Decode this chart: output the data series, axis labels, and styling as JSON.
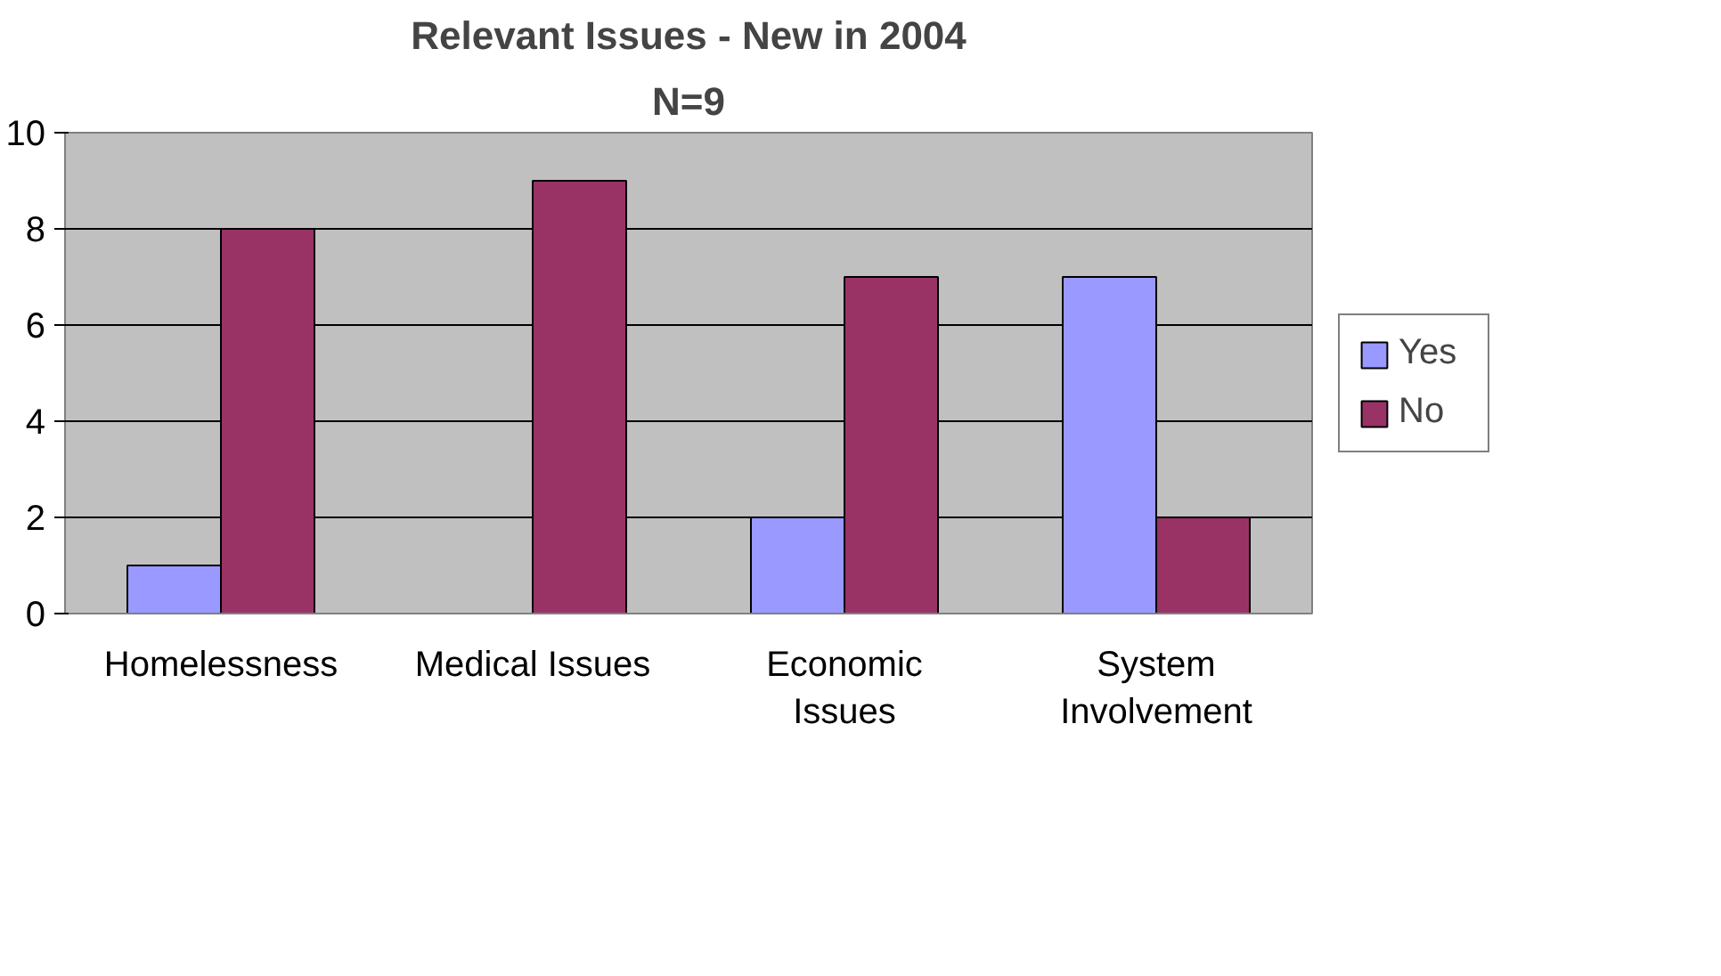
{
  "chart_data": {
    "type": "bar",
    "title": "Relevant Issues - New in 2004",
    "subtitle": "N=9",
    "categories": [
      "Homelessness",
      "Medical Issues",
      "Economic Issues",
      "System Involvement"
    ],
    "series": [
      {
        "name": "Yes",
        "color": "#9999ff",
        "values": [
          1,
          0,
          2,
          7
        ]
      },
      {
        "name": "No",
        "color": "#993366",
        "values": [
          8,
          9,
          7,
          2
        ]
      }
    ],
    "ylim": [
      0,
      10
    ],
    "yticks": [
      0,
      2,
      4,
      6,
      8,
      10
    ],
    "grid": "y",
    "legend": "right"
  }
}
